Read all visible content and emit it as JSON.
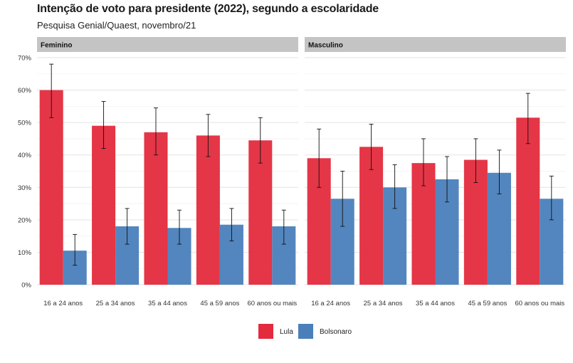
{
  "title": "Intenção de voto para presidente (2022), segundo a escolaridade",
  "subtitle": "Pesquisa Genial/Quaest, novembro/21",
  "chart_data": {
    "type": "bar",
    "categories": [
      "16 a 24 anos",
      "25 a 34 anos",
      "35 a 44 anos",
      "45 a 59 anos",
      "60 anos ou mais"
    ],
    "y_tick_labels": [
      "0%",
      "10%",
      "20%",
      "30%",
      "40%",
      "50%",
      "60%",
      "70%"
    ],
    "ylim": [
      0,
      70
    ],
    "grid": true,
    "legend_position": "bottom",
    "colors": {
      "Lula": "#e32b3d",
      "Bolsonaro": "#4a7fba"
    },
    "facets": [
      {
        "label": "Feminino",
        "series": [
          {
            "name": "Lula",
            "values": [
              60,
              49,
              47,
              46,
              44.5
            ],
            "error_low": [
              51.5,
              42,
              40,
              39.5,
              37.5
            ],
            "error_high": [
              68,
              56.5,
              54.5,
              52.5,
              51.5
            ]
          },
          {
            "name": "Bolsonaro",
            "values": [
              10.5,
              18,
              17.5,
              18.5,
              18
            ],
            "error_low": [
              6,
              12.5,
              12.5,
              13.5,
              12.5
            ],
            "error_high": [
              15.5,
              23.5,
              23,
              23.5,
              23
            ]
          }
        ]
      },
      {
        "label": "Masculino",
        "series": [
          {
            "name": "Lula",
            "values": [
              39,
              42.5,
              37.5,
              38.5,
              51.5
            ],
            "error_low": [
              30,
              35.5,
              30.5,
              31.5,
              43.5
            ],
            "error_high": [
              48,
              49.5,
              45,
              45,
              59
            ]
          },
          {
            "name": "Bolsonaro",
            "values": [
              26.5,
              30,
              32.5,
              34.5,
              26.5
            ],
            "error_low": [
              18,
              23.5,
              25.5,
              28,
              20
            ],
            "error_high": [
              35,
              37,
              39.5,
              41.5,
              33.5
            ]
          }
        ]
      }
    ]
  }
}
